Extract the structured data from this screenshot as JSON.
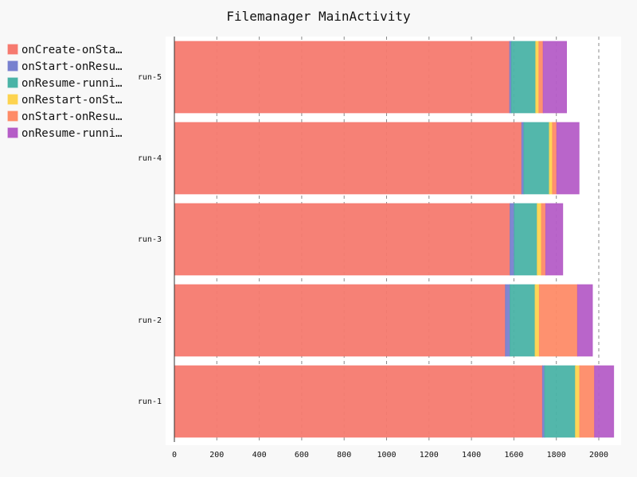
{
  "chart_data": {
    "type": "bar",
    "orientation": "horizontal",
    "stacked": true,
    "title": "Filemanager MainActivity",
    "xlabel": "",
    "ylabel": "",
    "categories": [
      "run-1",
      "run-2",
      "run-3",
      "run-4",
      "run-5"
    ],
    "xlim": [
      0,
      2100
    ],
    "x_ticks": [
      0,
      200,
      400,
      600,
      800,
      1000,
      1200,
      1400,
      1600,
      1800,
      2000
    ],
    "grid": "vertical-dashed",
    "legend_position": "left",
    "series": [
      {
        "name": "onCreate-onSta…",
        "color": "#f67a6f",
        "values": [
          1735,
          1560,
          1582,
          1637,
          1580
        ]
      },
      {
        "name": "onStart-onResu…",
        "color": "#7881cf",
        "values": [
          10,
          22,
          20,
          10,
          8
        ]
      },
      {
        "name": "onResume-runni…",
        "color": "#4ab3a6",
        "values": [
          145,
          118,
          108,
          120,
          115
        ]
      },
      {
        "name": "onRestart-onSt…",
        "color": "#fdd34f",
        "values": [
          20,
          20,
          20,
          15,
          15
        ]
      },
      {
        "name": "onStart-onResu…",
        "color": "#fe8b67",
        "values": [
          70,
          180,
          20,
          20,
          20
        ]
      },
      {
        "name": "onResume-runni…",
        "color": "#b55dc7",
        "values": [
          90,
          70,
          80,
          105,
          110
        ]
      }
    ]
  }
}
